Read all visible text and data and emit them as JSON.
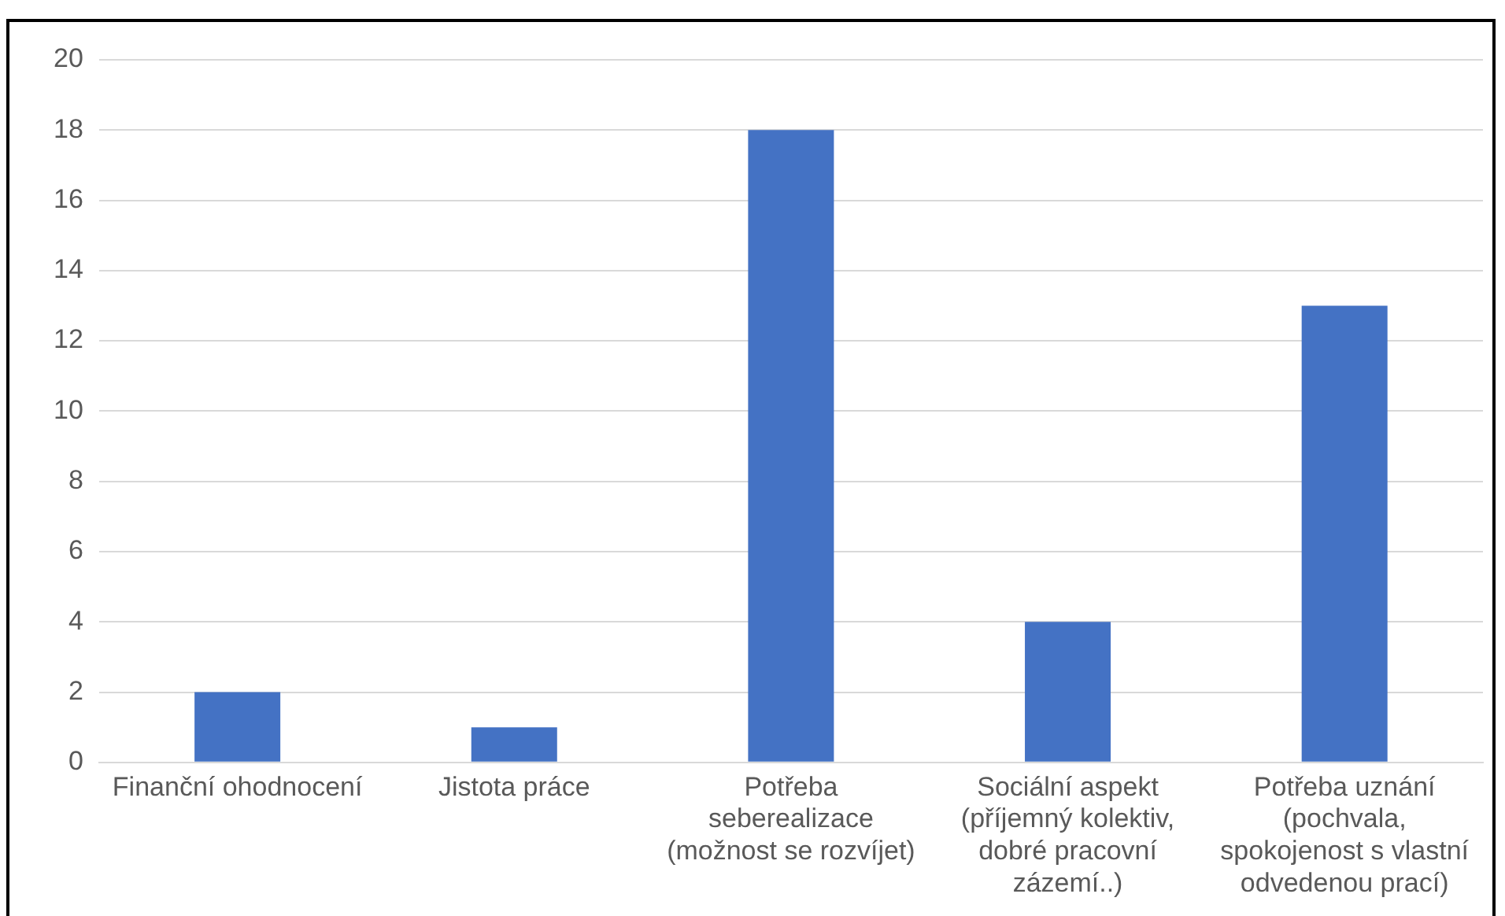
{
  "chart_data": {
    "type": "bar",
    "categories": [
      "Finanční ohodnocení",
      "Jistota práce",
      "Potřeba seberealizace (možnost se rozvíjet)",
      "Sociální aspekt (příjemný kolektiv, dobré pracovní zázemí..)",
      "Potřeba uznání (pochvala, spokojenost s vlastní odvedenou prací)"
    ],
    "values": [
      2,
      1,
      18,
      4,
      13
    ],
    "color": "#4472c4",
    "ylim": [
      0,
      20
    ],
    "yticks": [
      0,
      2,
      4,
      6,
      8,
      10,
      12,
      14,
      16,
      18,
      20
    ],
    "grid": "y"
  }
}
